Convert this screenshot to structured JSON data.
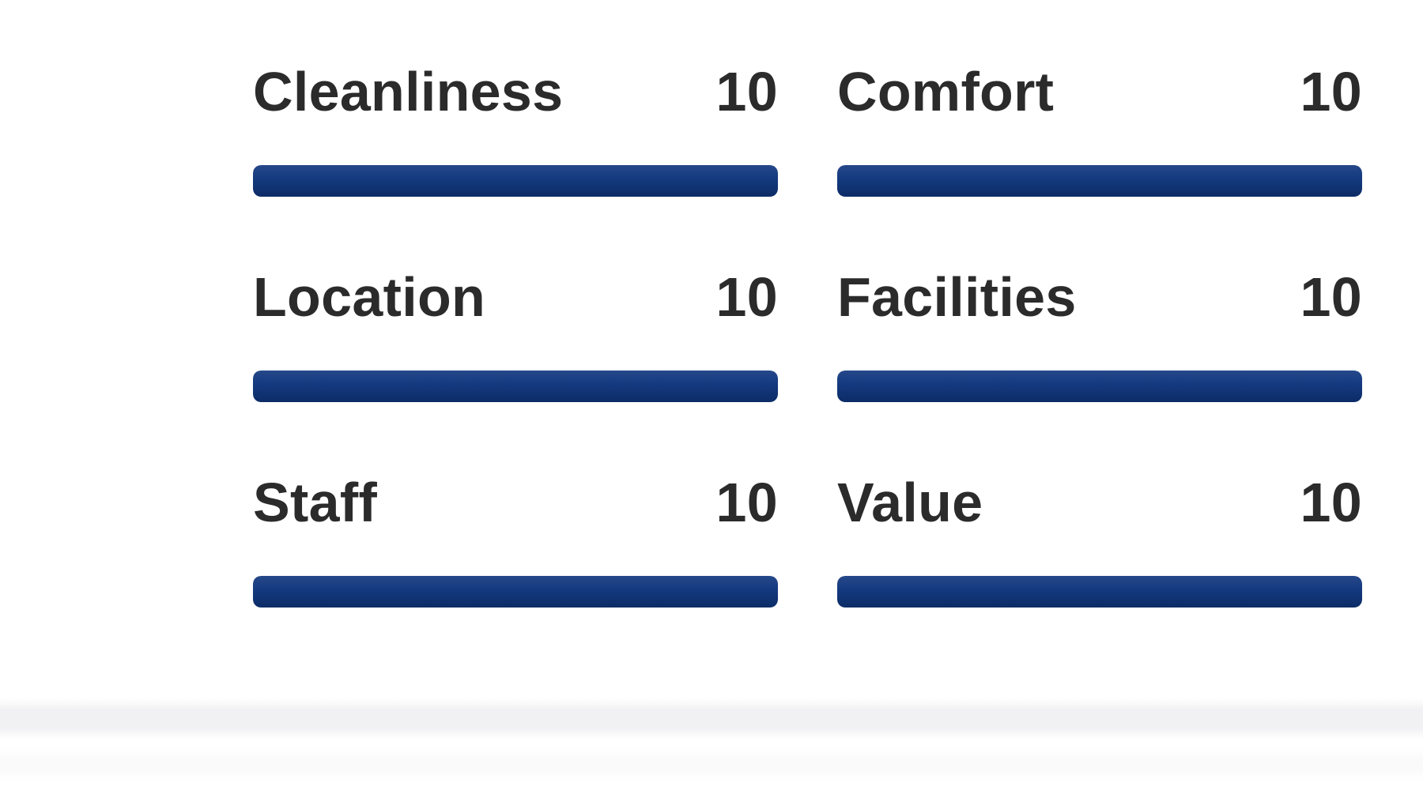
{
  "page": {
    "background_color": "#ffffff"
  },
  "review_subscores": {
    "bar_color": "#14397e",
    "text_color": "#2b2b2b",
    "items": [
      {
        "label": "Cleanliness",
        "score": "10",
        "percent": 100
      },
      {
        "label": "Comfort",
        "score": "10",
        "percent": 100
      },
      {
        "label": "Location",
        "score": "10",
        "percent": 100
      },
      {
        "label": "Facilities",
        "score": "10",
        "percent": 100
      },
      {
        "label": "Staff",
        "score": "10",
        "percent": 100
      },
      {
        "label": "Value",
        "score": "10",
        "percent": 100
      }
    ]
  },
  "footer": {
    "divider_color": "#f1f1f3"
  }
}
